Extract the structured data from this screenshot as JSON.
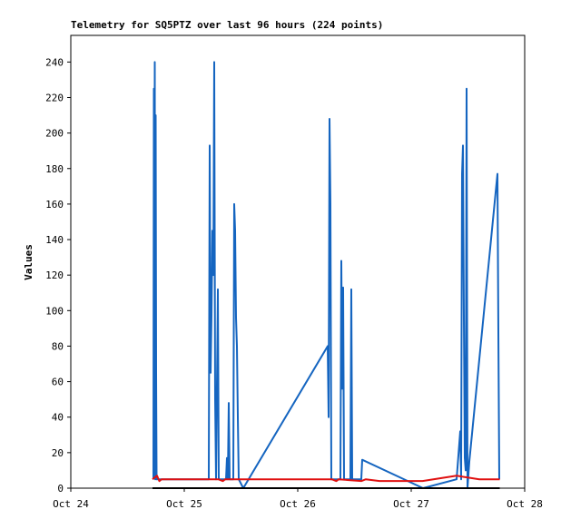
{
  "chart_data": {
    "type": "line",
    "title": "Telemetry for SQ5PTZ over last 96 hours (224 points)",
    "ylabel": "Values",
    "xlim": [
      0,
      4
    ],
    "ylim": [
      0,
      255
    ],
    "xticks": [
      {
        "value": 0,
        "label": "Oct 24"
      },
      {
        "value": 1,
        "label": "Oct 25"
      },
      {
        "value": 2,
        "label": "Oct 26"
      },
      {
        "value": 3,
        "label": "Oct 27"
      },
      {
        "value": 4,
        "label": "Oct 28"
      }
    ],
    "yticks": [
      0,
      20,
      40,
      60,
      80,
      100,
      120,
      140,
      160,
      180,
      200,
      220,
      240
    ],
    "series": [
      {
        "color": "#1565c0",
        "x": [
          0.728,
          0.732,
          0.736,
          0.74,
          0.744,
          0.748,
          0.752,
          0.756,
          0.76,
          1.216,
          1.224,
          1.232,
          1.24,
          1.248,
          1.256,
          1.264,
          1.272,
          1.28,
          1.296,
          1.304,
          1.368,
          1.376,
          1.384,
          1.392,
          1.4,
          1.432,
          1.44,
          1.448,
          1.456,
          1.464,
          1.472,
          1.48,
          1.52,
          2.264,
          2.272,
          2.28,
          2.288,
          2.296,
          2.376,
          2.384,
          2.392,
          2.4,
          2.408,
          2.464,
          2.472,
          2.48,
          2.56,
          2.568,
          3.104,
          3.4,
          3.432,
          3.44,
          3.448,
          3.456,
          3.464,
          3.472,
          3.48,
          3.488,
          3.496,
          3.512,
          3.76,
          3.768,
          3.776
        ],
        "values": [
          5,
          225,
          100,
          240,
          5,
          210,
          65,
          5,
          5,
          5,
          193,
          65,
          97,
          145,
          120,
          240,
          50,
          5,
          112,
          5,
          5,
          17,
          5,
          48,
          5,
          5,
          160,
          145,
          96,
          80,
          40,
          5,
          0,
          80,
          40,
          208,
          160,
          5,
          5,
          128,
          56,
          113,
          5,
          5,
          112,
          5,
          5,
          16,
          0,
          5,
          32,
          5,
          177,
          193,
          96,
          17,
          10,
          225,
          0,
          15,
          177,
          88,
          5
        ]
      },
      {
        "color": "#e01010",
        "x": [
          0.72,
          0.76,
          0.78,
          0.8,
          1.3,
          1.34,
          1.36,
          2.3,
          2.34,
          2.36,
          2.56,
          2.6,
          2.72,
          3.1,
          3.4,
          3.6,
          3.78
        ],
        "values": [
          5,
          7,
          4,
          5,
          5,
          4,
          5,
          5,
          4,
          5,
          4,
          5,
          4,
          4,
          7,
          5,
          5
        ]
      },
      {
        "color": "#000000",
        "x": [
          0.72,
          3.78
        ],
        "values": [
          0,
          0
        ]
      }
    ]
  }
}
